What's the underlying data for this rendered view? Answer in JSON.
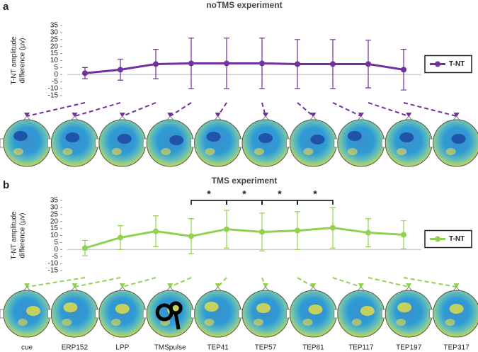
{
  "panel_labels": [
    "a",
    "b"
  ],
  "chart_data": [
    {
      "type": "line",
      "title": "noTMS experiment",
      "y_label": [
        "T-NT amplitude",
        "difference (µv)"
      ],
      "categories": [
        null,
        null,
        null,
        null,
        null,
        null,
        null,
        null,
        null,
        null
      ],
      "series": [
        {
          "name": "T-NT",
          "color": "#7030a0",
          "values": [
            1,
            3.5,
            7.5,
            8,
            8,
            8,
            7.5,
            7.5,
            7.5,
            3.5
          ],
          "errors": [
            4,
            7.5,
            10.5,
            18,
            18,
            18,
            17.5,
            17.5,
            17,
            14.5
          ]
        }
      ],
      "ylim": [
        -15,
        35
      ],
      "yticks": [
        -15,
        -10,
        -5,
        0,
        5,
        10,
        15,
        20,
        25,
        30,
        35
      ],
      "legend": "right"
    },
    {
      "type": "line",
      "title": "TMS experiment",
      "y_label": [
        "T-NT amplitude",
        "difference (µv)"
      ],
      "categories": [
        "cue",
        "ERP152",
        "LPP",
        "TMSpulse",
        "TEP41",
        "TEP57",
        "TEP81",
        "TEP117",
        "TEP197",
        "TEP317"
      ],
      "series": [
        {
          "name": "T-NT",
          "color": "#92d050",
          "values": [
            1,
            8.5,
            13,
            9.5,
            14.5,
            12.5,
            13.5,
            15.5,
            12,
            10.5
          ],
          "errors": [
            5.5,
            8.5,
            11,
            12.5,
            13.5,
            13.5,
            13.5,
            14.5,
            10,
            10
          ]
        }
      ],
      "ylim": [
        -15,
        35
      ],
      "yticks": [
        -15,
        -10,
        -5,
        0,
        5,
        10,
        15,
        20,
        25,
        30,
        35
      ],
      "legend": "right",
      "brackets": [
        {
          "from": 3,
          "to": 4,
          "label": "*"
        },
        {
          "from": 4,
          "to": 5,
          "label": "*"
        },
        {
          "from": 5,
          "to": 6,
          "label": "*"
        },
        {
          "from": 6,
          "to": 7,
          "label": "*"
        }
      ]
    }
  ]
}
